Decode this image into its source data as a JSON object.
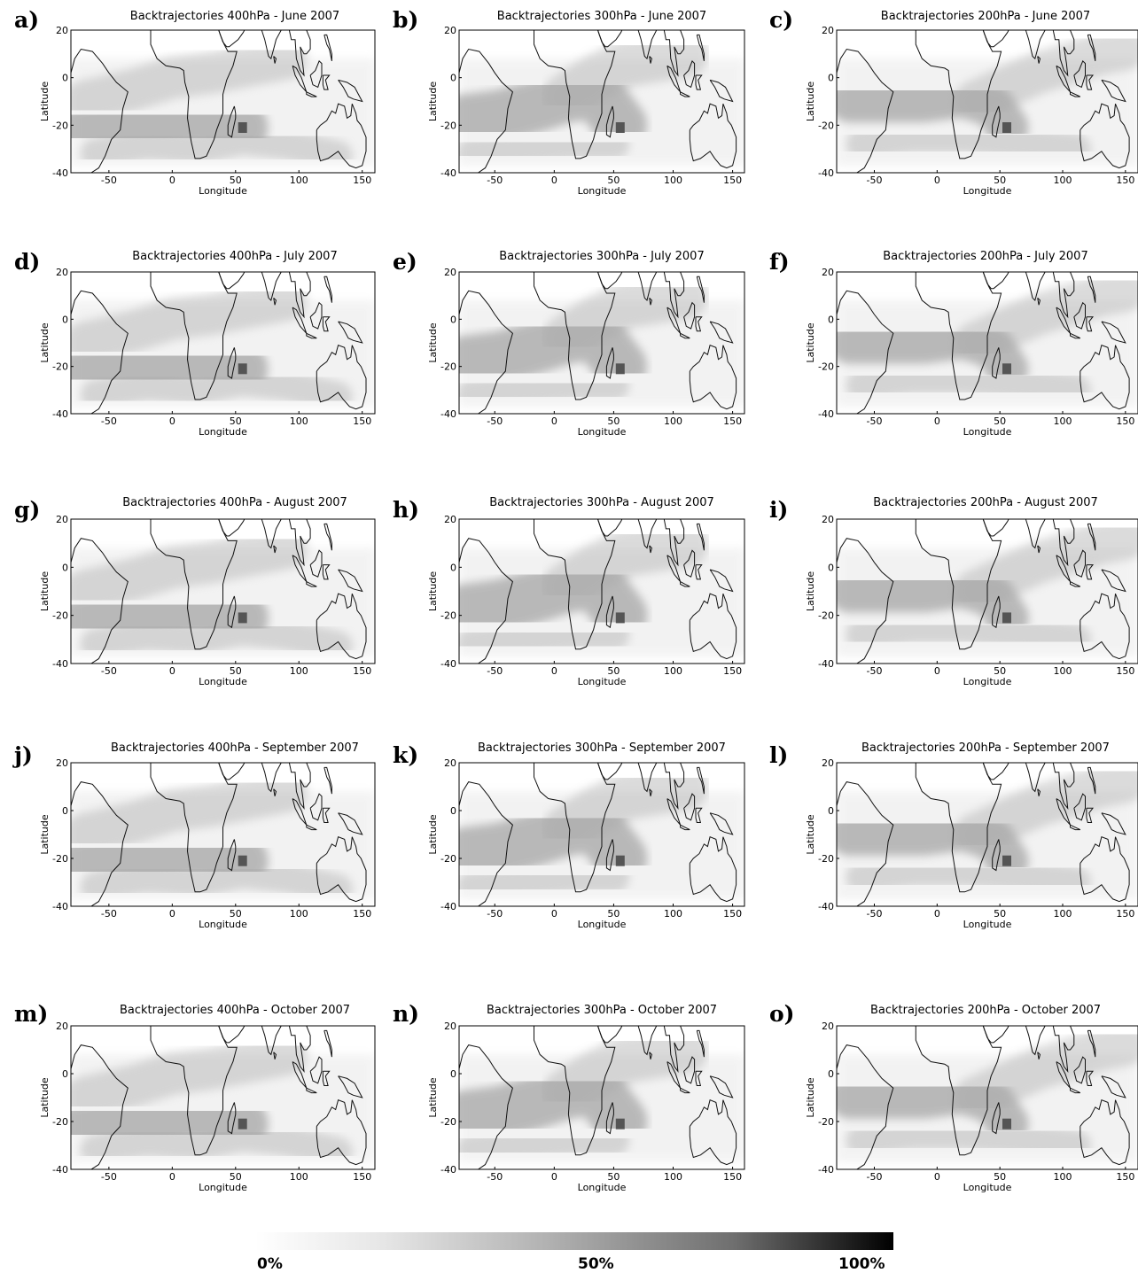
{
  "chart_data": [
    {
      "letter": "a)",
      "title": "Backtrajectories 400hPa - June 2007"
    },
    {
      "letter": "b)",
      "title": "Backtrajectories 300hPa - June 2007"
    },
    {
      "letter": "c)",
      "title": "Backtrajectories 200hPa - June 2007"
    },
    {
      "letter": "d)",
      "title": "Backtrajectories 400hPa - July 2007"
    },
    {
      "letter": "e)",
      "title": "Backtrajectories 300hPa - July 2007"
    },
    {
      "letter": "f)",
      "title": "Backtrajectories 200hPa - July 2007"
    },
    {
      "letter": "g)",
      "title": "Backtrajectories 400hPa - August 2007"
    },
    {
      "letter": "h)",
      "title": "Backtrajectories 300hPa - August 2007"
    },
    {
      "letter": "i)",
      "title": "Backtrajectories 200hPa - August 2007"
    },
    {
      "letter": "j)",
      "title": "Backtrajectories 400hPa - September 2007"
    },
    {
      "letter": "k)",
      "title": "Backtrajectories 300hPa - September 2007"
    },
    {
      "letter": "l)",
      "title": "Backtrajectories 200hPa - September 2007"
    },
    {
      "letter": "m)",
      "title": "Backtrajectories 400hPa - October 2007"
    },
    {
      "letter": "n)",
      "title": "Backtrajectories 300hPa - October 2007"
    },
    {
      "letter": "o)",
      "title": "Backtrajectories 200hPa - October 2007"
    }
  ],
  "common": {
    "type": "heatmap",
    "xlabel": "Longitude",
    "ylabel": "Latitude",
    "xlim": [
      -80,
      160
    ],
    "ylim": [
      -40,
      20
    ],
    "xticks": [
      -50,
      0,
      50,
      100,
      150
    ],
    "yticks": [
      -40,
      -20,
      0,
      20
    ],
    "source_marker": {
      "lon": 55.5,
      "lat": -21
    }
  },
  "colorbar": {
    "labels": [
      "0%",
      "50%",
      "100%"
    ],
    "colors": [
      "#ffffff",
      "#000000"
    ]
  }
}
